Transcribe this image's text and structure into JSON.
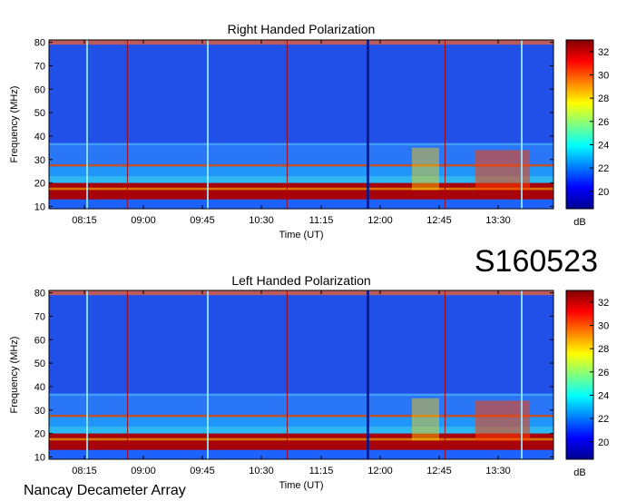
{
  "observation_id": "S160523",
  "instrument": "Nancay Decameter Array",
  "chart_data": [
    {
      "type": "heatmap",
      "title": "Right Handed Polarization",
      "xlabel": "Time (UT)",
      "ylabel": "Frequency (MHz)",
      "x_tick_labels": [
        "08:15",
        "09:00",
        "09:45",
        "10:30",
        "11:15",
        "12:00",
        "12:45",
        "13:30"
      ],
      "y_ticks": [
        10,
        20,
        30,
        40,
        50,
        60,
        70,
        80
      ],
      "ylim": [
        9,
        81
      ],
      "colorbar": {
        "label": "dB",
        "ticks": [
          20,
          22,
          24,
          26,
          28,
          30,
          32
        ],
        "range": [
          18.5,
          33
        ]
      }
    },
    {
      "type": "heatmap",
      "title": "Left Handed Polarization",
      "xlabel": "Time (UT)",
      "ylabel": "Frequency (MHz)",
      "x_tick_labels": [
        "08:15",
        "09:00",
        "09:45",
        "10:30",
        "11:15",
        "12:00",
        "12:45",
        "13:30"
      ],
      "y_ticks": [
        10,
        20,
        30,
        40,
        50,
        60,
        70,
        80
      ],
      "ylim": [
        9,
        81
      ],
      "colorbar": {
        "label": "dB",
        "ticks": [
          20,
          22,
          24,
          26,
          28,
          30,
          32
        ],
        "range": [
          18.5,
          33
        ]
      }
    }
  ]
}
